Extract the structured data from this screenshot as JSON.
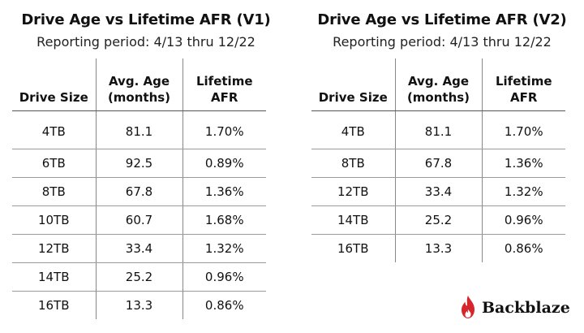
{
  "v1": {
    "title": "Drive Age vs Lifetime AFR (V1)",
    "subtitle": "Reporting period: 4/13 thru 12/22",
    "headers": {
      "size": "Drive Size",
      "age_line1": "Avg. Age",
      "age_line2": "(months)",
      "afr_line1": "Lifetime",
      "afr_line2": "AFR"
    },
    "rows": [
      {
        "size": "4TB",
        "age": "81.1",
        "afr": "1.70%"
      },
      {
        "size": "6TB",
        "age": "92.5",
        "afr": "0.89%"
      },
      {
        "size": "8TB",
        "age": "67.8",
        "afr": "1.36%"
      },
      {
        "size": "10TB",
        "age": "60.7",
        "afr": "1.68%"
      },
      {
        "size": "12TB",
        "age": "33.4",
        "afr": "1.32%"
      },
      {
        "size": "14TB",
        "age": "25.2",
        "afr": "0.96%"
      },
      {
        "size": "16TB",
        "age": "13.3",
        "afr": "0.86%"
      }
    ]
  },
  "v2": {
    "title": "Drive Age vs Lifetime AFR (V2)",
    "subtitle": "Reporting period: 4/13 thru 12/22",
    "headers": {
      "size": "Drive Size",
      "age_line1": "Avg. Age",
      "age_line2": "(months)",
      "afr_line1": "Lifetime",
      "afr_line2": "AFR"
    },
    "rows": [
      {
        "size": "4TB",
        "age": "81.1",
        "afr": "1.70%"
      },
      {
        "size": "8TB",
        "age": "67.8",
        "afr": "1.36%"
      },
      {
        "size": "12TB",
        "age": "33.4",
        "afr": "1.32%"
      },
      {
        "size": "14TB",
        "age": "25.2",
        "afr": "0.96%"
      },
      {
        "size": "16TB",
        "age": "13.3",
        "afr": "0.86%"
      }
    ]
  },
  "logo": {
    "text": "Backblaze",
    "icon": "flame-icon",
    "color": "#d6262b"
  }
}
